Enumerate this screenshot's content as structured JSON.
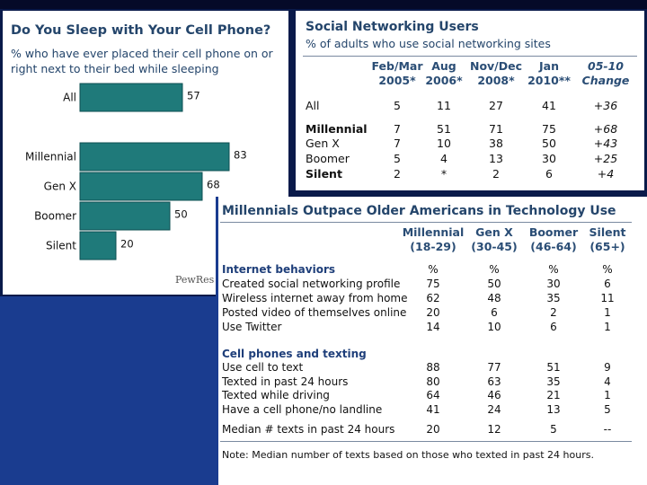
{
  "chart_data": [
    {
      "type": "bar",
      "title": "Do You Sleep with Your Cell Phone?",
      "subtitle": "% who have ever placed their cell phone on or right next to their bed while sleeping",
      "categories": [
        "All",
        "Millennial",
        "Gen X",
        "Boomer",
        "Silent"
      ],
      "values": [
        57,
        83,
        68,
        50,
        20
      ],
      "value_labels": [
        "57",
        "83",
        "68",
        "50",
        "20"
      ],
      "orientation": "horizontal",
      "xlim": [
        0,
        100
      ],
      "bar_color": "#1f7a7a",
      "source": "PewRes"
    },
    {
      "type": "table",
      "title": "Social Networking Users",
      "subtitle": "% of adults who use social networking sites",
      "columns": [
        {
          "line1": "Feb/Mar",
          "line2": "2005*"
        },
        {
          "line1": "Aug",
          "line2": "2006*"
        },
        {
          "line1": "Nov/Dec",
          "line2": "2008*"
        },
        {
          "line1": "Jan",
          "line2": "2010**"
        },
        {
          "line1": "05-10",
          "line2": "Change"
        }
      ],
      "rows": [
        {
          "label": "All",
          "values": [
            "5",
            "11",
            "27",
            "41",
            "+36"
          ],
          "bold": false
        },
        {
          "label": "Millennial",
          "values": [
            "7",
            "51",
            "71",
            "75",
            "+68"
          ],
          "bold": true
        },
        {
          "label": "Gen X",
          "values": [
            "7",
            "10",
            "38",
            "50",
            "+43"
          ],
          "bold": false
        },
        {
          "label": "Boomer",
          "values": [
            "5",
            "4",
            "13",
            "30",
            "+25"
          ],
          "bold": false
        },
        {
          "label": "Silent",
          "values": [
            "2",
            "*",
            "2",
            "6",
            "+4"
          ],
          "bold": true
        }
      ]
    },
    {
      "type": "table",
      "title": "Millennials Outpace Older Americans in Technology Use",
      "columns": [
        {
          "line1": "Millennial",
          "line2": "(18-29)"
        },
        {
          "line1": "Gen X",
          "line2": "(30-45)"
        },
        {
          "line1": "Boomer",
          "line2": "(46-64)"
        },
        {
          "line1": "Silent",
          "line2": "(65+)"
        }
      ],
      "sections": [
        {
          "heading": "Internet behaviors",
          "units": [
            "%",
            "%",
            "%",
            "%"
          ],
          "rows": [
            {
              "label": "Created social networking profile",
              "values": [
                "75",
                "50",
                "30",
                "6"
              ]
            },
            {
              "label": "Wireless internet away from home",
              "values": [
                "62",
                "48",
                "35",
                "11"
              ]
            },
            {
              "label": "Posted video of themselves online",
              "values": [
                "20",
                "6",
                "2",
                "1"
              ]
            },
            {
              "label": "Use Twitter",
              "values": [
                "14",
                "10",
                "6",
                "1"
              ]
            }
          ]
        },
        {
          "heading": "Cell phones and texting",
          "rows": [
            {
              "label": "Use cell to text",
              "values": [
                "88",
                "77",
                "51",
                "9"
              ]
            },
            {
              "label": "Texted in past 24 hours",
              "values": [
                "80",
                "63",
                "35",
                "4"
              ]
            },
            {
              "label": "Texted while driving",
              "values": [
                "64",
                "46",
                "21",
                "1"
              ]
            },
            {
              "label": "Have a cell phone/no landline",
              "values": [
                "41",
                "24",
                "13",
                "5"
              ]
            }
          ]
        }
      ],
      "median_row": {
        "label": "Median # texts in past 24 hours",
        "values": [
          "20",
          "12",
          "5",
          "--"
        ]
      },
      "note": "Note: Median number of texts based on those who texted in past 24 hours."
    }
  ]
}
